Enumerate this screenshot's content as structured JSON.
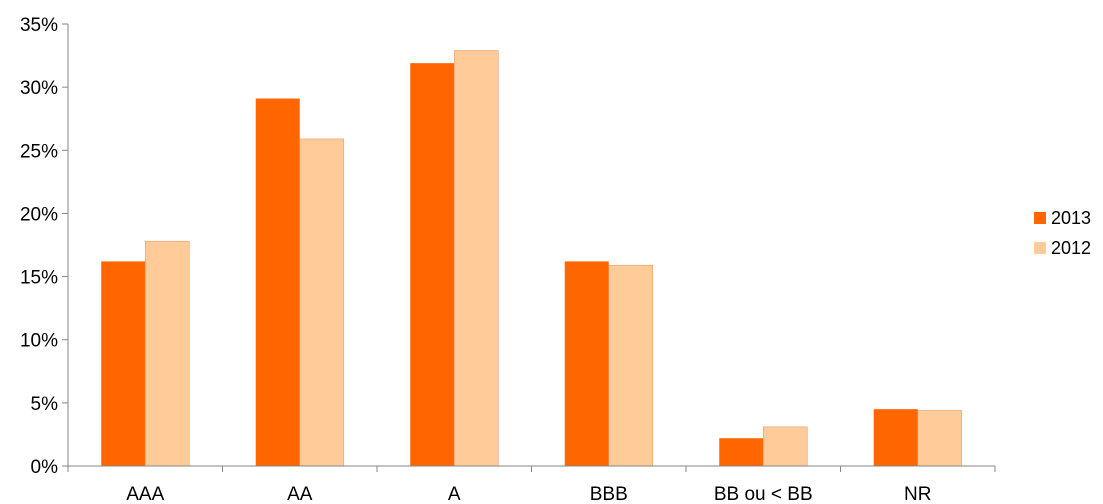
{
  "chart_data": {
    "type": "bar",
    "title": "",
    "xlabel": "",
    "ylabel": "",
    "categories": [
      "AAA",
      "AA",
      "A",
      "BBB",
      "BB ou < BB",
      "NR"
    ],
    "series": [
      {
        "name": "2013",
        "color": "#ff6600",
        "values": [
          16.2,
          29.1,
          31.9,
          16.2,
          2.2,
          4.5
        ]
      },
      {
        "name": "2012",
        "color": "#ffcc99",
        "values": [
          17.8,
          25.9,
          32.9,
          15.9,
          3.1,
          4.4
        ]
      }
    ],
    "ylim": [
      0,
      35
    ],
    "yticks": [
      0,
      5,
      10,
      15,
      20,
      25,
      30,
      35
    ],
    "ytick_format": "{v}%",
    "grid": false,
    "legend_position": "right"
  }
}
